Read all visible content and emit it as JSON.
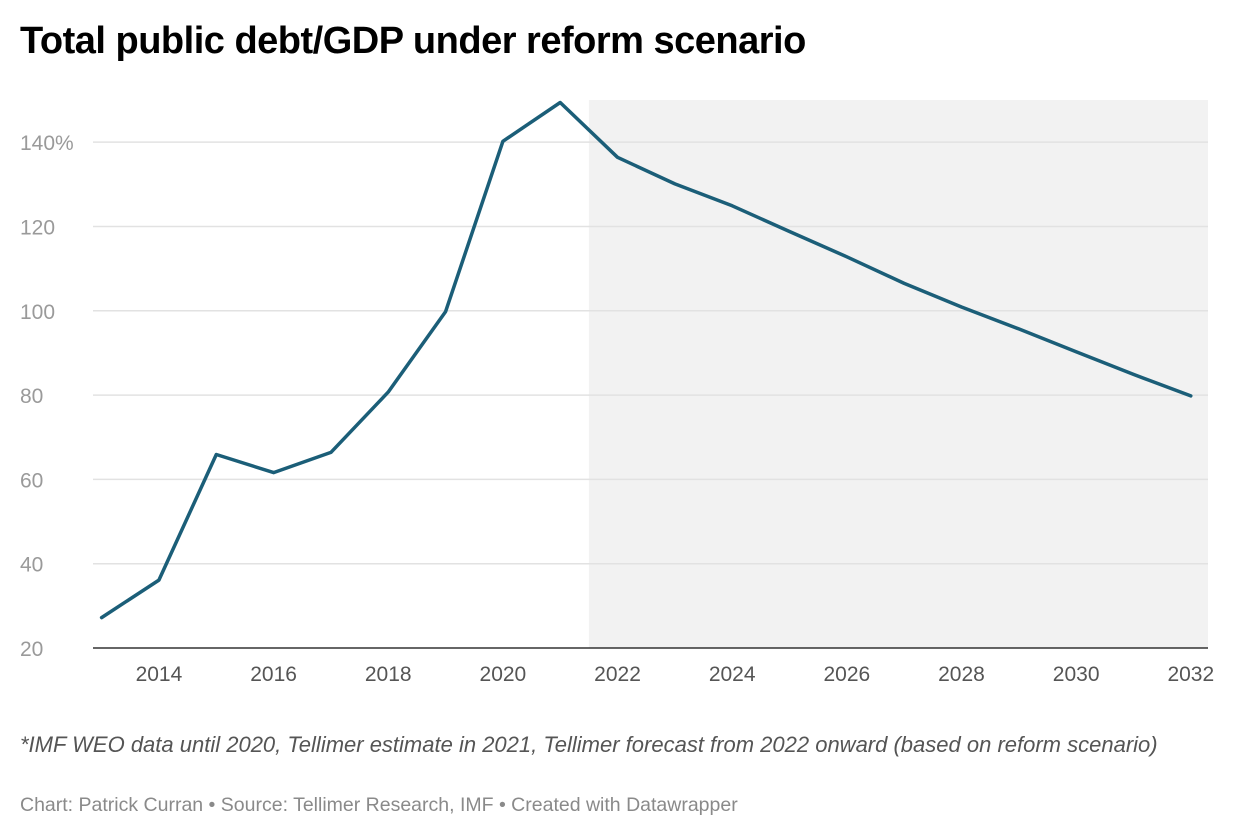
{
  "header": {
    "title": "Total public debt/GDP under reform scenario"
  },
  "chart_data": {
    "type": "line",
    "title": "Total public debt/GDP under reform scenario",
    "xlabel": "",
    "ylabel": "",
    "x": [
      2013,
      2014,
      2015,
      2016,
      2017,
      2018,
      2019,
      2020,
      2021,
      2022,
      2023,
      2024,
      2025,
      2026,
      2027,
      2028,
      2029,
      2030,
      2031,
      2032
    ],
    "values": [
      27.2,
      36.1,
      65.9,
      61.6,
      66.4,
      80.7,
      99.8,
      140.2,
      149.4,
      136.4,
      130.1,
      124.9,
      118.8,
      112.8,
      106.5,
      100.9,
      95.7,
      90.3,
      84.9,
      79.8
    ],
    "xlim": [
      2012.85,
      2032.3
    ],
    "ylim": [
      20,
      150
    ],
    "y_ticks": [
      20,
      40,
      60,
      80,
      100,
      120,
      140
    ],
    "y_tick_labels": [
      "20",
      "40",
      "60",
      "80",
      "100",
      "120",
      "140%"
    ],
    "x_ticks": [
      2014,
      2016,
      2018,
      2020,
      2022,
      2024,
      2026,
      2028,
      2030,
      2032
    ],
    "x_tick_labels": [
      "2014",
      "2016",
      "2018",
      "2020",
      "2022",
      "2024",
      "2026",
      "2028",
      "2030",
      "2032"
    ],
    "forecast_region_start": 2021.5,
    "grid": true,
    "legend": "none"
  },
  "colors": {
    "line": "#1b5e78",
    "forecast_band": "#f2f2f2",
    "grid": "#e2e2e2",
    "axis": "#333333"
  },
  "footer": {
    "notes": "*IMF WEO data until 2020, Tellimer estimate in 2021, Tellimer forecast from 2022 onward (based on reform scenario)",
    "credits": "Chart: Patrick Curran • Source: Tellimer Research, IMF • Created with Datawrapper"
  }
}
